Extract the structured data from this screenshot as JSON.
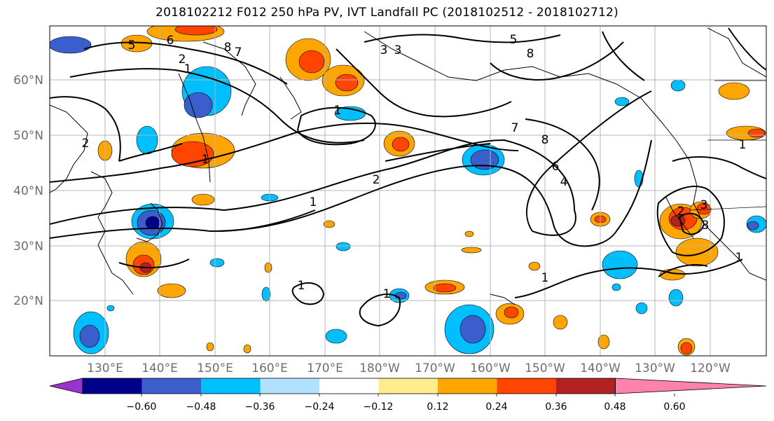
{
  "title": "2018102212 F012 250 hPa PV, IVT Landfall PC (2018102512 - 2018102712)",
  "lon_labels": [
    "130°E",
    "140°E",
    "150°E",
    "160°E",
    "170°E",
    "180°W",
    "170°W",
    "160°W",
    "150°W",
    "140°W",
    "130°W",
    "120°W"
  ],
  "lat_labels": [
    "60°N",
    "50°N",
    "40°N",
    "30°N",
    "20°N"
  ],
  "colorbar": {
    "tick_labels": [
      "−0.60",
      "−0.48",
      "−0.36",
      "−0.24",
      "−0.12",
      "0.12",
      "0.24",
      "0.36",
      "0.48",
      "0.60"
    ],
    "colors": [
      "#9a32cd",
      "#00008b",
      "#3a5fcd",
      "#00bfff",
      "#b0e2ff",
      "#ffffff",
      "#ffec8b",
      "#ffa500",
      "#ff4500",
      "#b22222",
      "#ff82ab"
    ]
  },
  "contour_labels": [
    "5",
    "6",
    "8",
    "7",
    "5",
    "8",
    "3",
    "3",
    "2",
    "1",
    "1",
    "2",
    "1",
    "1",
    "7",
    "8",
    "6",
    "4",
    "2",
    "1",
    "1",
    "1",
    "1",
    "2",
    "3",
    "3",
    "1"
  ],
  "fill_colors": {
    "neg_light": "#00bfff",
    "neg_mid": "#3a5fcd",
    "neg_dark": "#00008b",
    "pos_light": "#ffa500",
    "pos_mid": "#ff4500",
    "pos_dark": "#b22222"
  }
}
